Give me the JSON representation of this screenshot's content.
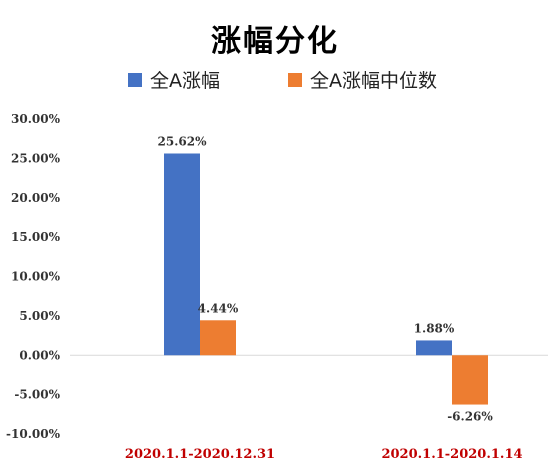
{
  "colors": {
    "series1": "#4472C4",
    "series2": "#ED7D31",
    "category_label": "#C00000",
    "axis_text": "#333333",
    "gridline": "#D9D9D9"
  },
  "chart_data": {
    "type": "bar",
    "title": "涨幅分化",
    "categories": [
      "2020.1.1-2020.12.31",
      "2020.1.1-2020.1.14"
    ],
    "series": [
      {
        "name": "全A涨幅",
        "values": [
          25.62,
          1.88
        ],
        "labels": [
          "25.62%",
          "1.88%"
        ]
      },
      {
        "name": "全A涨幅中位数",
        "values": [
          4.44,
          -6.26
        ],
        "labels": [
          "4.44%",
          "-6.26%"
        ]
      }
    ],
    "ylim": [
      -10,
      30
    ],
    "yticks": [
      -10,
      -5,
      0,
      5,
      10,
      15,
      20,
      25,
      30
    ],
    "ytick_labels": [
      "-10.00%",
      "-5.00%",
      "0.00%",
      "5.00%",
      "10.00%",
      "15.00%",
      "20.00%",
      "25.00%",
      "30.00%"
    ],
    "legend_position": "top",
    "grid": false
  }
}
